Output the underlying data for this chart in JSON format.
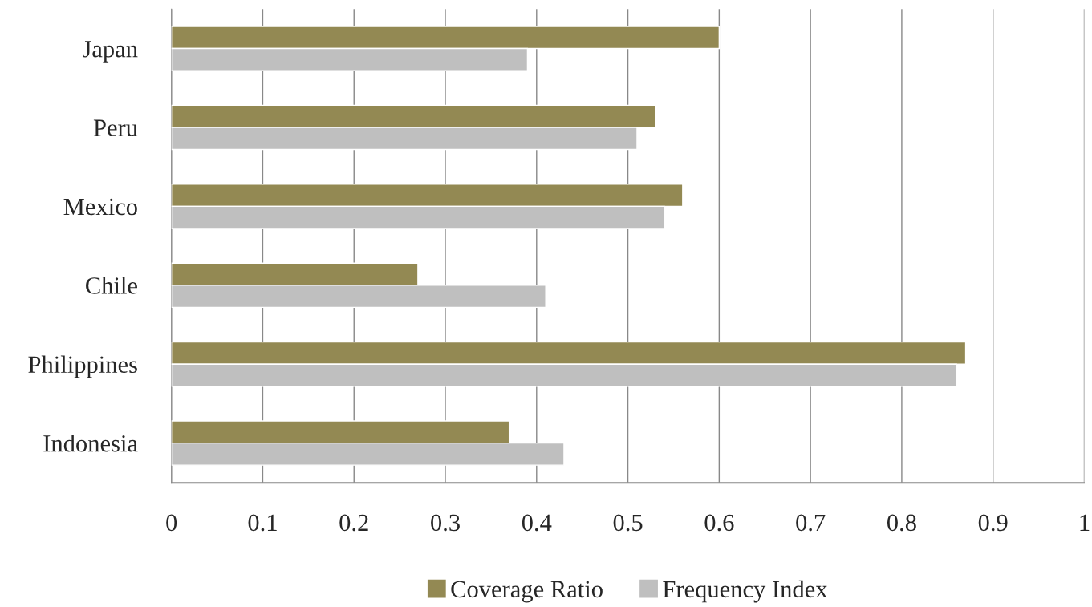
{
  "chart_data": {
    "type": "bar",
    "orientation": "horizontal",
    "categories": [
      "Japan",
      "Peru",
      "Mexico",
      "Chile",
      "Philippines",
      "Indonesia"
    ],
    "series": [
      {
        "name": "Coverage Ratio",
        "color": "#938953",
        "values": [
          0.6,
          0.53,
          0.56,
          0.27,
          0.87,
          0.37
        ]
      },
      {
        "name": "Frequency Index",
        "color": "#bfbfbf",
        "values": [
          0.39,
          0.51,
          0.54,
          0.41,
          0.86,
          0.43
        ]
      }
    ],
    "xlim": [
      0,
      1
    ],
    "xticks": [
      0,
      0.1,
      0.2,
      0.3,
      0.4,
      0.5,
      0.6,
      0.7,
      0.8,
      0.9,
      1
    ],
    "grid": "x",
    "legend": "bottom"
  }
}
